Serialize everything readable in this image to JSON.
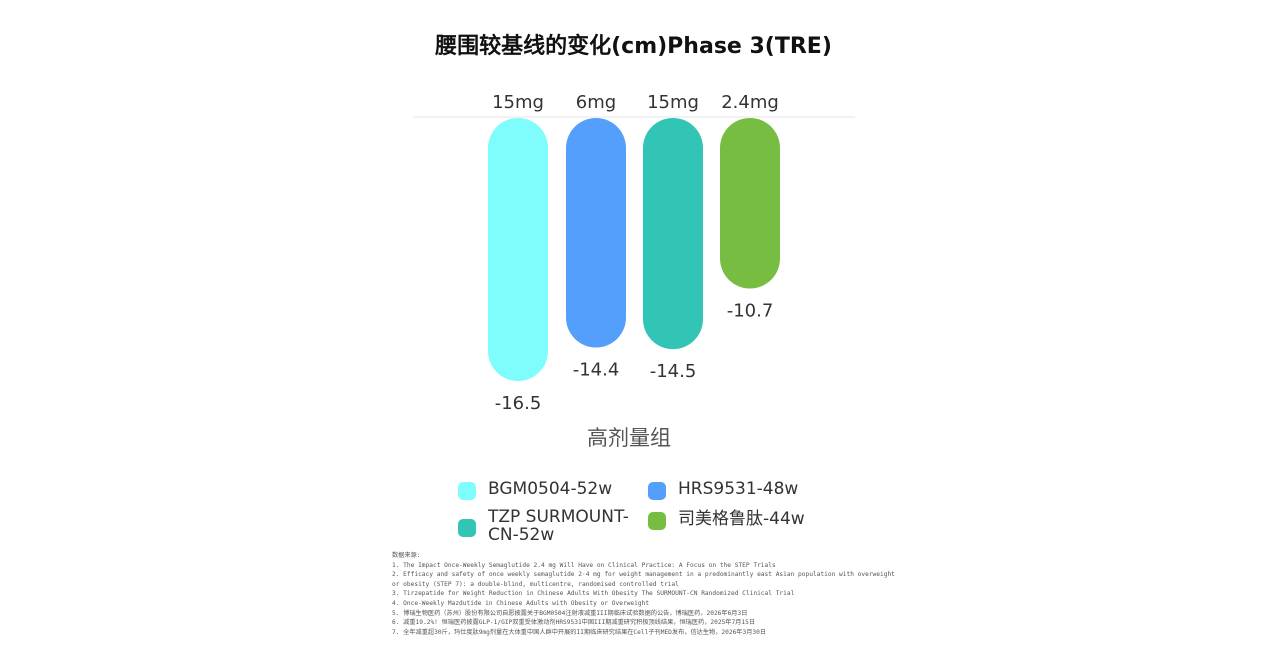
{
  "title": "腰围较基线的变化(cm)Phase 3(TRE)",
  "chart_data": {
    "type": "bar",
    "title": "腰围较基线的变化(cm)Phase 3(TRE)",
    "xlabel": "高剂量组",
    "ylabel": "",
    "categories": [
      "高剂量组"
    ],
    "series": [
      {
        "name": "BGM0504-52w",
        "dose": "15mg",
        "values": [
          -16.5
        ],
        "color": "#7ffcfc"
      },
      {
        "name": "HRS9531-48w",
        "dose": "6mg",
        "values": [
          -14.4
        ],
        "color": "#559ffc"
      },
      {
        "name": "TZP SURMOUNT-CN-52w",
        "dose": "15mg",
        "values": [
          -14.5
        ],
        "color": "#32c4b4"
      },
      {
        "name": "司美格鲁肽-44w",
        "dose": "2.4mg",
        "values": [
          -10.7
        ],
        "color": "#76bd42"
      }
    ],
    "value_labels": [
      "-16.5",
      "-14.4",
      "-14.5",
      "-10.7"
    ],
    "ylim": [
      -18,
      0
    ],
    "legend": "bottom"
  },
  "legend": [
    {
      "label": "BGM0504-52w",
      "color": "#7ffcfc"
    },
    {
      "label": "HRS9531-48w",
      "color": "#559ffc"
    },
    {
      "label": "TZP SURMOUNT-CN-52w",
      "color": "#32c4b4"
    },
    {
      "label": "司美格鲁肽-44w",
      "color": "#76bd42"
    }
  ],
  "sources": {
    "heading": "数据来源:",
    "items": [
      "1. The Impact Once-Weekly Semaglutide 2.4 mg Will Have on Clinical Practice: A Focus on the STEP Trials",
      "2. Efficacy and safety of once weekly semaglutide 2·4 mg for weight management in a predominantly east Asian population with overweight",
      "or obesity (STEP 7): a double-blind, multicentre, randomised controlled trial",
      "3. Tirzepatide for Weight Reduction in Chinese Adults With Obesity The SURMOUNT-CN Randomized Clinical Trial",
      "4. Once-Weekly Mazdutide in Chinese Adults with Obesity or Overweight",
      "5. 博瑞生物医药（苏州）股份有限公司自愿披露关于BGM0504注射液减重III期临床试验数据的公告，博瑞医药，2026年6月3日",
      "6. 减重19.2%! 恒瑞医药披露GLP-1/GIP双重受体激动剂HRS9531中国III期减重研究积极顶线结果，恒瑞医药，2025年7月15日",
      "7. 全年减重超30斤，玛仕度肽9mg剂量在大体重中国人群中开展的II期临床研究结果在Cell子刊MED发布，信达生物，2026年3月30日"
    ]
  }
}
